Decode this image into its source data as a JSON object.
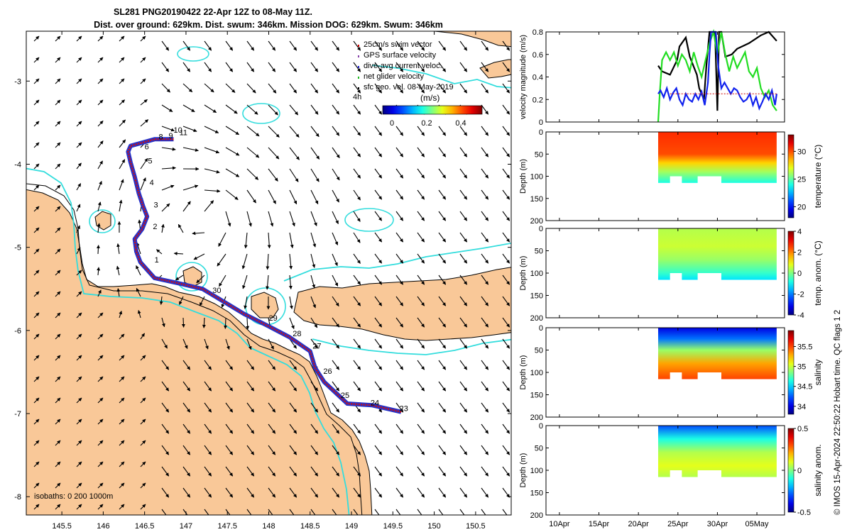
{
  "title_line1": "SL281 PNG20190422 22-Apr 12Z to 08-May 11Z.",
  "title_line2": "Dist. over ground: 629km. Dist. swum: 346km. Mission DOG: 629km. Swum: 346km",
  "footer": "© IMOS 15-Apr-2024 22:50:22 Hobart time. QC flags 1  2",
  "map": {
    "legend": [
      {
        "label": "25cm/s swim vector",
        "color": "#cc0000"
      },
      {
        "label": "GPS surface velocity",
        "color": "#8844aa"
      },
      {
        "label": "dive-avg current veloc.",
        "color": "#2222cc"
      },
      {
        "label": "net glider velocity",
        "color": "#22bb22"
      },
      {
        "label": "sfc geo. vel. 08-May-2019",
        "color": "#000000"
      }
    ],
    "scale_vector_label": "4h",
    "colorbar_label": "(m/s)",
    "colorbar_ticks": [
      "0",
      "0.2",
      "0.4"
    ],
    "isobath_label": "isobaths: 0   200  1000m",
    "colors": {
      "land": "#f9c898",
      "isobath_200": "#000000",
      "isobath_1000": "#33dddd",
      "track": "#cc1111",
      "track_shadow": "#2233cc"
    },
    "x_ticks": [
      "145.5",
      "146",
      "146.5",
      "147",
      "147.5",
      "148",
      "148.5",
      "149",
      "149.5",
      "150",
      "150.5"
    ],
    "y_ticks": [
      "-3",
      "-4",
      "-5",
      "-6",
      "-7",
      "-8"
    ],
    "day_labels": [
      {
        "t": "10",
        "lon": 146.85,
        "lat": -3.62
      },
      {
        "t": "11",
        "lon": 146.92,
        "lat": -3.65
      },
      {
        "t": "9",
        "lon": 146.79,
        "lat": -3.69
      },
      {
        "t": "8",
        "lon": 146.67,
        "lat": -3.7
      },
      {
        "t": "6",
        "lon": 146.5,
        "lat": -3.82
      },
      {
        "t": "5",
        "lon": 146.54,
        "lat": -3.99
      },
      {
        "t": "4",
        "lon": 146.56,
        "lat": -4.25
      },
      {
        "t": "3",
        "lon": 146.61,
        "lat": -4.52
      },
      {
        "t": "2",
        "lon": 146.6,
        "lat": -4.78
      },
      {
        "t": "1",
        "lon": 146.62,
        "lat": -5.18
      },
      {
        "t": "30",
        "lon": 147.32,
        "lat": -5.55
      },
      {
        "t": "29",
        "lon": 148.0,
        "lat": -5.88
      },
      {
        "t": "28",
        "lon": 148.29,
        "lat": -6.07
      },
      {
        "t": "27",
        "lon": 148.53,
        "lat": -6.22
      },
      {
        "t": "26",
        "lon": 148.66,
        "lat": -6.52
      },
      {
        "t": "25",
        "lon": 148.87,
        "lat": -6.81
      },
      {
        "t": "24",
        "lon": 149.23,
        "lat": -6.9
      },
      {
        "t": "23",
        "lon": 149.58,
        "lat": -6.97
      }
    ]
  },
  "chart_data": [
    {
      "type": "line",
      "ylabel": "velocity magnitude (m/s)",
      "ylim": [
        0,
        0.8
      ],
      "yticks": [
        "0",
        "0.2",
        "0.4",
        "0.6",
        "0.8"
      ],
      "series": [
        {
          "color": "#000000",
          "x": [
            22.5,
            23.0,
            24.0,
            24.9,
            25.2,
            26.0,
            26.5,
            27.4,
            27.7,
            28.3,
            28.6,
            29.0,
            29.4,
            29.7,
            30.0,
            30.2,
            30.5,
            31.0,
            31.8,
            32.5,
            34.0,
            35.5,
            36.5,
            37.5
          ],
          "y": [
            0.5,
            0.45,
            0.42,
            0.55,
            0.67,
            0.75,
            0.58,
            0.42,
            0.3,
            0.2,
            0.5,
            0.8,
            0.8,
            0.8,
            0.1,
            0.8,
            0.8,
            0.58,
            0.6,
            0.65,
            0.7,
            0.77,
            0.8,
            0.72
          ]
        },
        {
          "color": "#22dd22",
          "x": [
            22.5,
            22.7,
            23.0,
            23.5,
            24.0,
            24.5,
            25.0,
            25.5,
            26.0,
            26.5,
            27.0,
            27.5,
            28.0,
            28.5,
            29.0,
            29.5,
            30.0,
            30.5,
            31.0,
            31.5,
            32.0,
            32.5,
            33.0,
            33.5,
            34.0,
            34.5,
            35.0,
            35.5,
            36.0,
            36.5,
            37.0,
            37.5
          ],
          "y": [
            0.0,
            0.25,
            0.55,
            0.62,
            0.55,
            0.62,
            0.5,
            0.6,
            0.55,
            0.45,
            0.62,
            0.5,
            0.4,
            0.55,
            0.7,
            0.8,
            0.6,
            0.8,
            0.6,
            0.45,
            0.58,
            0.48,
            0.55,
            0.62,
            0.45,
            0.4,
            0.48,
            0.3,
            0.22,
            0.28,
            0.15,
            0.1
          ]
        },
        {
          "color": "#1122ee",
          "x": [
            22.5,
            22.8,
            23.2,
            23.6,
            24.0,
            24.4,
            24.8,
            25.2,
            25.6,
            26.0,
            26.4,
            26.8,
            27.2,
            27.6,
            28.0,
            28.4,
            28.8,
            29.0,
            29.2,
            29.5,
            29.8,
            30.1,
            30.5,
            30.9,
            31.3,
            31.7,
            32.1,
            32.5,
            32.9,
            33.3,
            33.7,
            34.1,
            34.5,
            34.9,
            35.3,
            35.7,
            36.1,
            36.5,
            36.9,
            37.3,
            37.5
          ],
          "y": [
            0.25,
            0.28,
            0.22,
            0.3,
            0.2,
            0.26,
            0.3,
            0.2,
            0.15,
            0.25,
            0.2,
            0.18,
            0.25,
            0.2,
            0.27,
            0.15,
            0.35,
            0.6,
            0.8,
            0.8,
            0.8,
            0.5,
            0.3,
            0.35,
            0.3,
            0.25,
            0.3,
            0.28,
            0.22,
            0.18,
            0.2,
            0.25,
            0.15,
            0.22,
            0.12,
            0.18,
            0.25,
            0.2,
            0.28,
            0.15,
            0.25
          ]
        },
        {
          "color": "#cc0000",
          "x": [
            24.0,
            37.5
          ],
          "y": [
            0.25,
            0.25
          ]
        }
      ]
    },
    {
      "type": "heatmap",
      "ylabel": "Depth (m)",
      "ylim": [
        200,
        0
      ],
      "yticks": [
        "0",
        "50",
        "100",
        "150",
        "200"
      ],
      "colorbar_label": "temperature (°C)",
      "clim": [
        18,
        33
      ],
      "cticks": [
        "20",
        "25",
        "30"
      ],
      "profile": [
        {
          "d": 0,
          "v": 30.5
        },
        {
          "d": 50,
          "v": 30
        },
        {
          "d": 70,
          "v": 28
        },
        {
          "d": 90,
          "v": 26
        },
        {
          "d": 115,
          "v": 24
        }
      ]
    },
    {
      "type": "heatmap",
      "ylabel": "Depth (m)",
      "ylim": [
        200,
        0
      ],
      "yticks": [
        "0",
        "50",
        "100",
        "150",
        "200"
      ],
      "colorbar_label": "temp. anom. (°C)",
      "clim": [
        -4,
        4
      ],
      "cticks": [
        "-4",
        "-2",
        "0",
        "2",
        "4"
      ],
      "profile": [
        {
          "d": 0,
          "v": 0.4
        },
        {
          "d": 40,
          "v": 0.6
        },
        {
          "d": 70,
          "v": 0.2
        },
        {
          "d": 100,
          "v": -0.6
        },
        {
          "d": 115,
          "v": -1.2
        }
      ]
    },
    {
      "type": "heatmap",
      "ylabel": "Depth (m)",
      "ylim": [
        200,
        0
      ],
      "yticks": [
        "0",
        "50",
        "100",
        "150",
        "200"
      ],
      "colorbar_label": "salinity",
      "clim": [
        33.8,
        35.9
      ],
      "cticks": [
        "34",
        "34.5",
        "35",
        "35.5"
      ],
      "profile": [
        {
          "d": 0,
          "v": 34.0
        },
        {
          "d": 25,
          "v": 34.3
        },
        {
          "d": 50,
          "v": 34.9
        },
        {
          "d": 80,
          "v": 35.3
        },
        {
          "d": 115,
          "v": 35.5
        }
      ]
    },
    {
      "type": "heatmap",
      "ylabel": "Depth (m)",
      "ylim": [
        200,
        0
      ],
      "yticks": [
        "0",
        "50",
        "100",
        "150",
        "200"
      ],
      "colorbar_label": "salinity anom.",
      "clim": [
        -0.5,
        0.5
      ],
      "cticks": [
        "-0.5",
        "0",
        "0.5"
      ],
      "profile": [
        {
          "d": 0,
          "v": -0.3
        },
        {
          "d": 30,
          "v": -0.1
        },
        {
          "d": 60,
          "v": 0.05
        },
        {
          "d": 90,
          "v": 0.1
        },
        {
          "d": 115,
          "v": 0.05
        }
      ]
    }
  ],
  "time_axis": {
    "ticks": [
      "10Apr",
      "15Apr",
      "20Apr",
      "25Apr",
      "30Apr",
      "05May"
    ],
    "tick_days": [
      10,
      15,
      20,
      25,
      30,
      35
    ],
    "xlim": [
      8.3,
      38.5
    ],
    "data_range": [
      22.5,
      37.5
    ]
  }
}
